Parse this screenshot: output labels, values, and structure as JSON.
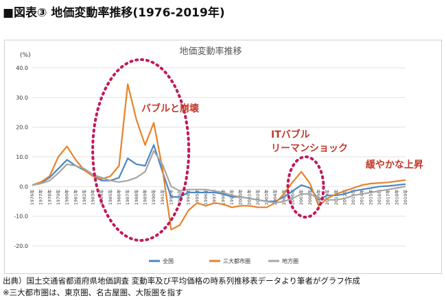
{
  "heading": "■図表③ 地価変動率推移(1976-2019年)",
  "chart_data": {
    "type": "line",
    "title": "地価変動率推移",
    "y_unit_label": "(%)",
    "ylim": [
      -20,
      40
    ],
    "y_ticks": [
      "40.0",
      "30.0",
      "20.0",
      "10.0",
      "0.0",
      "-10.0",
      "-20.0"
    ],
    "y_tick_values": [
      40,
      30,
      20,
      10,
      0,
      -10,
      -20
    ],
    "grid": true,
    "legend_position": "bottom",
    "categories": [
      "1976年",
      "1977年",
      "1978年",
      "1979年",
      "1980年",
      "1981年",
      "1982年",
      "1983年",
      "1984年",
      "1985年",
      "1986年",
      "1987年",
      "1988年",
      "1989年",
      "1990年",
      "1991年",
      "1992年",
      "1993年",
      "1994年",
      "1995年",
      "1996年",
      "1997年",
      "1998年",
      "1999年",
      "2000年",
      "2001年",
      "2002年",
      "2003年",
      "2004年",
      "2005年",
      "2006年",
      "2007年",
      "2008年",
      "2009年",
      "2010年",
      "2011年",
      "2012年",
      "2013年",
      "2014年",
      "2015年",
      "2016年",
      "2017年",
      "2018年",
      "2019年"
    ],
    "series": [
      {
        "name": "全国",
        "color": "#4a86c5",
        "values": [
          0.5,
          1.2,
          3.0,
          6.0,
          9.0,
          7.0,
          5.5,
          3.5,
          2.0,
          2.0,
          3.0,
          9.5,
          7.5,
          7.0,
          14.0,
          5.0,
          -3.5,
          -3.5,
          -2.0,
          -2.0,
          -2.0,
          -2.0,
          -2.5,
          -3.5,
          -3.5,
          -4.0,
          -4.5,
          -5.0,
          -5.0,
          -3.5,
          -1.5,
          0.5,
          -0.5,
          -4.5,
          -3.0,
          -3.0,
          -2.5,
          -1.5,
          -1.0,
          -0.5,
          0.0,
          0.2,
          0.5,
          0.8
        ]
      },
      {
        "name": "三大都市圏",
        "color": "#e6822a",
        "values": [
          0.5,
          1.5,
          3.5,
          10.0,
          13.5,
          9.0,
          5.5,
          3.5,
          2.5,
          3.5,
          7.0,
          34.5,
          22.5,
          14.0,
          21.5,
          6.0,
          -14.5,
          -13.0,
          -8.0,
          -5.5,
          -6.5,
          -5.5,
          -6.0,
          -7.0,
          -6.5,
          -6.5,
          -7.0,
          -7.0,
          -5.5,
          -2.5,
          1.5,
          5.0,
          1.0,
          -6.5,
          -4.0,
          -2.5,
          -1.5,
          -0.5,
          0.5,
          1.0,
          1.2,
          1.4,
          1.8,
          2.2
        ]
      },
      {
        "name": "地方圏",
        "color": "#a6a6a6",
        "values": [
          0.5,
          1.0,
          2.0,
          4.5,
          7.5,
          7.0,
          6.0,
          4.0,
          3.0,
          2.0,
          1.5,
          2.0,
          3.0,
          5.0,
          12.0,
          7.5,
          0.0,
          -1.5,
          -1.0,
          -1.0,
          -1.0,
          -1.5,
          -2.0,
          -3.0,
          -3.5,
          -4.0,
          -4.5,
          -5.0,
          -5.5,
          -5.0,
          -4.0,
          -2.5,
          -2.5,
          -4.0,
          -4.5,
          -4.5,
          -4.0,
          -3.0,
          -2.5,
          -2.0,
          -1.5,
          -1.0,
          -0.5,
          0.0
        ]
      }
    ],
    "annotations": [
      {
        "text": "バブルと崩壊",
        "color": "#c0392b"
      },
      {
        "text": "ITバブル",
        "color": "#c0392b"
      },
      {
        "text": "リーマンショック",
        "color": "#c0392b"
      },
      {
        "text": "緩やかな上昇",
        "color": "#c0392b"
      }
    ],
    "highlight_color": "#c2185b"
  },
  "footer": {
    "source": "出典）国土交通省都道府県地価調査 変動率及び平均価格の時系列推移表データより筆者がグラフ作成",
    "note": "※三大都市圏は、東京圏、名古屋圏、大阪圏を指す"
  }
}
